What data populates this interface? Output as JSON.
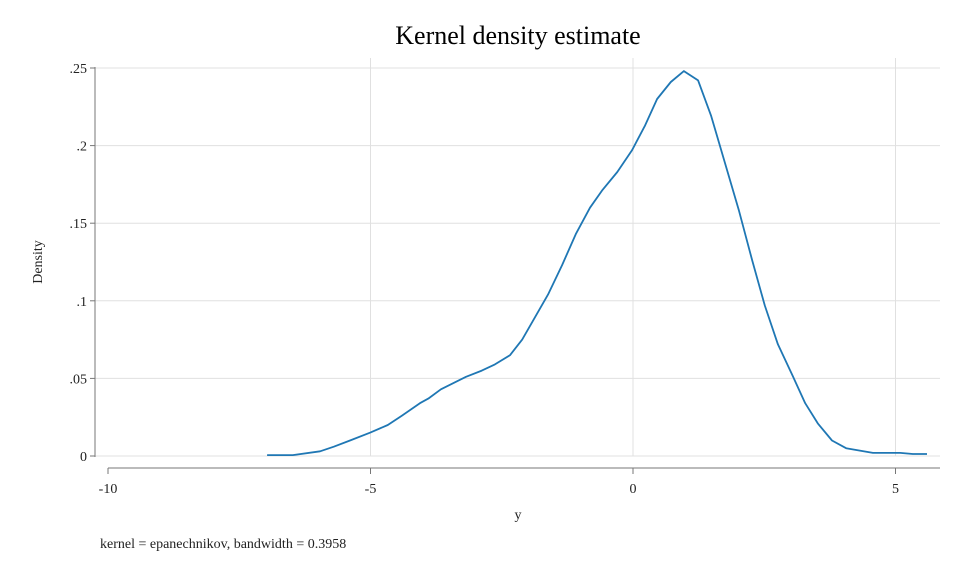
{
  "chart_data": {
    "type": "line",
    "title": "Kernel density estimate",
    "xlabel": "y",
    "ylabel": "Density",
    "note": "kernel = epanechnikov, bandwidth = 0.3958",
    "xlim": [
      -10,
      5.8
    ],
    "ylim": [
      0,
      0.25
    ],
    "xticks": [
      -10,
      -5,
      0,
      5
    ],
    "xtick_labels": [
      "-10",
      "-5",
      "0",
      "5"
    ],
    "yticks": [
      0,
      0.05,
      0.1,
      0.15,
      0.2,
      0.25
    ],
    "ytick_labels": [
      "0",
      ".05",
      ".1",
      ".15",
      ".2",
      ".25"
    ],
    "grid": true,
    "color": "#1f77b4",
    "series": [
      {
        "name": "Density",
        "x": [
          -6.97,
          -6.48,
          -5.96,
          -5.7,
          -5.39,
          -5.01,
          -4.67,
          -4.4,
          -4.06,
          -3.9,
          -3.66,
          -3.18,
          -2.88,
          -2.63,
          -2.34,
          -2.11,
          -1.62,
          -1.35,
          -1.09,
          -0.82,
          -0.59,
          -0.3,
          -0.02,
          0.23,
          0.46,
          0.72,
          0.97,
          1.24,
          1.49,
          1.75,
          2.02,
          2.27,
          2.51,
          2.76,
          3.05,
          3.28,
          3.52,
          3.79,
          4.06,
          4.57,
          5.09,
          5.33,
          5.6
        ],
        "y": [
          0.0006,
          0.0006,
          0.003,
          0.006,
          0.01,
          0.015,
          0.02,
          0.026,
          0.034,
          0.037,
          0.043,
          0.051,
          0.055,
          0.059,
          0.065,
          0.075,
          0.104,
          0.123,
          0.143,
          0.16,
          0.171,
          0.183,
          0.197,
          0.213,
          0.23,
          0.241,
          0.248,
          0.242,
          0.219,
          0.189,
          0.158,
          0.126,
          0.097,
          0.072,
          0.051,
          0.034,
          0.021,
          0.01,
          0.005,
          0.002,
          0.002,
          0.0013,
          0.0013
        ]
      }
    ]
  }
}
